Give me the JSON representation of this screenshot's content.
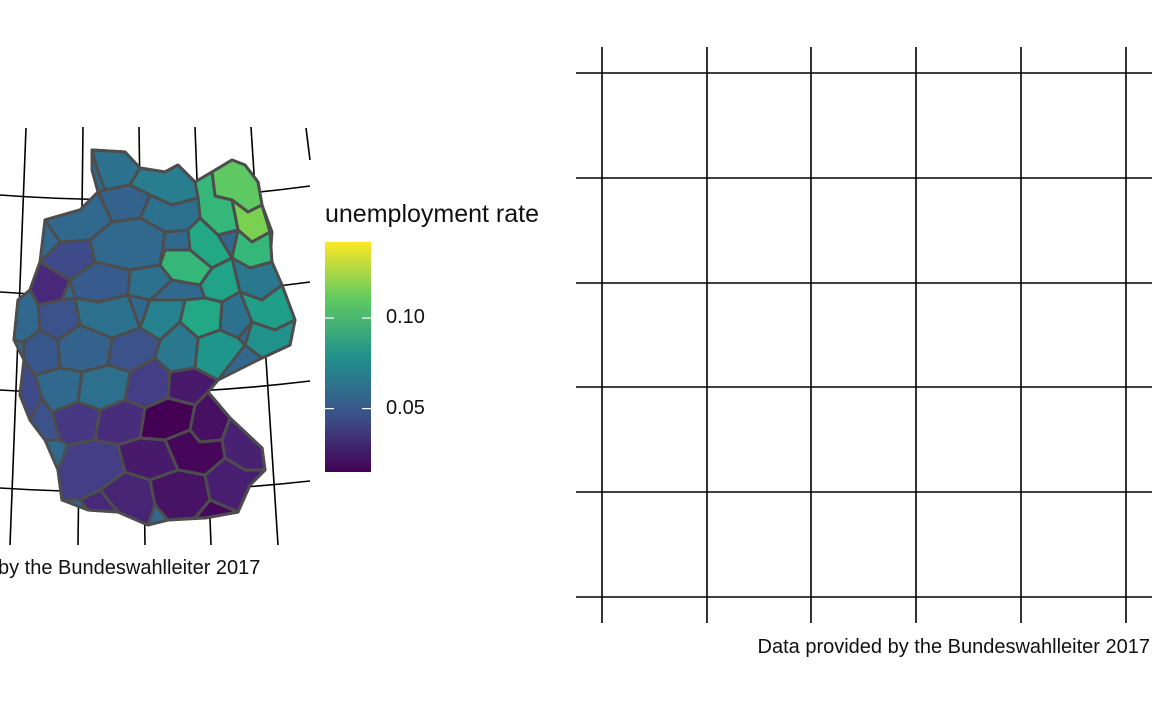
{
  "left_panel": {
    "caption": "by the Bundeswahlleiter 2017",
    "legend": {
      "title": "unemployment rate",
      "ticks": [
        {
          "label": "0.10",
          "value": 0.1
        },
        {
          "label": "0.05",
          "value": 0.05
        }
      ],
      "range": [
        0.015,
        0.142
      ],
      "colormap": "viridis",
      "colors": [
        "#440154",
        "#3b528b",
        "#21918c",
        "#5ec962",
        "#fde725"
      ]
    },
    "map": {
      "region": "Germany, constituencies",
      "border_color": "#4d4d4d",
      "graticule_color": "#000000"
    }
  },
  "right_panel": {
    "caption": "Data provided by the Bundeswahlleiter 2017",
    "grid_color": "#000000"
  }
}
